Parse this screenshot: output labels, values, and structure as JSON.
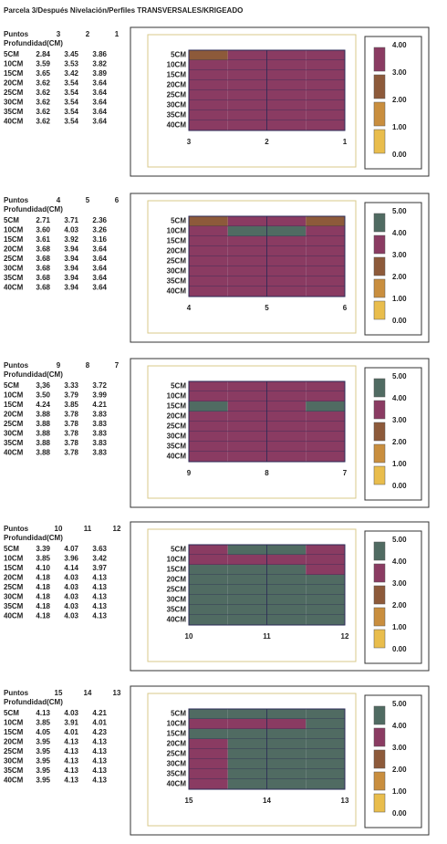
{
  "title": "Parcela 3/Después Nivelación/Perfiles TRANSVERSALES/KRIGEADO",
  "colors": [
    "#e9bd4c",
    "#c98e3e",
    "#8d5a3a",
    "#8a3b62",
    "#506b62"
  ],
  "sections": [
    {
      "points_header": "Puntos",
      "depth_header": "Profundidad(CM)",
      "points": [
        "3",
        "2",
        "1"
      ],
      "legend": [
        "4.00",
        "3.00",
        "2.00",
        "1.00",
        "0.00"
      ],
      "rows": [
        {
          "depth": "5CM",
          "values": [
            "2.84",
            "3.45",
            "3.86"
          ]
        },
        {
          "depth": "10CM",
          "values": [
            "3.59",
            "3.53",
            "3.82"
          ]
        },
        {
          "depth": "15CM",
          "values": [
            "3.65",
            "3.42",
            "3.89"
          ]
        },
        {
          "depth": "20CM",
          "values": [
            "3.62",
            "3.54",
            "3.64"
          ]
        },
        {
          "depth": "25CM",
          "values": [
            "3.62",
            "3.54",
            "3.64"
          ]
        },
        {
          "depth": "30CM",
          "values": [
            "3.62",
            "3.54",
            "3.64"
          ]
        },
        {
          "depth": "35CM",
          "values": [
            "3.62",
            "3.54",
            "3.64"
          ]
        },
        {
          "depth": "40CM",
          "values": [
            "3.62",
            "3.54",
            "3.64"
          ]
        }
      ]
    },
    {
      "points_header": "Puntos",
      "depth_header": "Profundidad(CM)",
      "points": [
        "4",
        "5",
        "6"
      ],
      "legend": [
        "5.00",
        "4.00",
        "3.00",
        "2.00",
        "1.00",
        "0.00"
      ],
      "rows": [
        {
          "depth": "5CM",
          "values": [
            "2.71",
            "3.71",
            "2.36"
          ]
        },
        {
          "depth": "10CM",
          "values": [
            "3.60",
            "4.03",
            "3.26"
          ]
        },
        {
          "depth": "15CM",
          "values": [
            "3.61",
            "3.92",
            "3.16"
          ]
        },
        {
          "depth": "20CM",
          "values": [
            "3.68",
            "3.94",
            "3.64"
          ]
        },
        {
          "depth": "25CM",
          "values": [
            "3.68",
            "3.94",
            "3.64"
          ]
        },
        {
          "depth": "30CM",
          "values": [
            "3.68",
            "3.94",
            "3.64"
          ]
        },
        {
          "depth": "35CM",
          "values": [
            "3.68",
            "3.94",
            "3.64"
          ]
        },
        {
          "depth": "40CM",
          "values": [
            "3.68",
            "3.94",
            "3.64"
          ]
        }
      ]
    },
    {
      "points_header": "Puntos",
      "depth_header": "Profundidad(CM)",
      "points": [
        "9",
        "8",
        "7"
      ],
      "legend": [
        "5.00",
        "4.00",
        "3.00",
        "2.00",
        "1.00",
        "0.00"
      ],
      "rows": [
        {
          "depth": "5CM",
          "values": [
            "3,36",
            "3.33",
            "3.72"
          ]
        },
        {
          "depth": "10CM",
          "values": [
            "3.50",
            "3.79",
            "3.99"
          ]
        },
        {
          "depth": "15CM",
          "values": [
            "4.24",
            "3.85",
            "4.21"
          ]
        },
        {
          "depth": "20CM",
          "values": [
            "3.88",
            "3.78",
            "3.83"
          ]
        },
        {
          "depth": "25CM",
          "values": [
            "3.88",
            "3.78",
            "3.83"
          ]
        },
        {
          "depth": "30CM",
          "values": [
            "3.88",
            "3.78",
            "3.83"
          ]
        },
        {
          "depth": "35CM",
          "values": [
            "3.88",
            "3.78",
            "3.83"
          ]
        },
        {
          "depth": "40CM",
          "values": [
            "3.88",
            "3.78",
            "3.83"
          ]
        }
      ]
    },
    {
      "points_header": "Puntos",
      "depth_header": "Profundidad(CM)",
      "points": [
        "10",
        "11",
        "12"
      ],
      "legend": [
        "5.00",
        "4.00",
        "3.00",
        "2.00",
        "1.00",
        "0.00"
      ],
      "rows": [
        {
          "depth": "5CM",
          "values": [
            "3.39",
            "4.07",
            "3.63"
          ]
        },
        {
          "depth": "10CM",
          "values": [
            "3.85",
            "3.96",
            "3.42"
          ]
        },
        {
          "depth": "15CM",
          "values": [
            "4.10",
            "4.14",
            "3.97"
          ]
        },
        {
          "depth": "20CM",
          "values": [
            "4.18",
            "4.03",
            "4.13"
          ]
        },
        {
          "depth": "25CM",
          "values": [
            "4.18",
            "4.03",
            "4.13"
          ]
        },
        {
          "depth": "30CM",
          "values": [
            "4.18",
            "4.03",
            "4.13"
          ]
        },
        {
          "depth": "35CM",
          "values": [
            "4.18",
            "4.03",
            "4.13"
          ]
        },
        {
          "depth": "40CM",
          "values": [
            "4.18",
            "4.03",
            "4.13"
          ]
        }
      ]
    },
    {
      "points_header": "Puntos",
      "depth_header": "Profundidad(CM)",
      "points": [
        "15",
        "14",
        "13"
      ],
      "legend": [
        "5.00",
        "4.00",
        "3.00",
        "2.00",
        "1.00",
        "0.00"
      ],
      "rows": [
        {
          "depth": "5CM",
          "values": [
            "4.13",
            "4.03",
            "4.21"
          ]
        },
        {
          "depth": "10CM",
          "values": [
            "3.85",
            "3.91",
            "4.01"
          ]
        },
        {
          "depth": "15CM",
          "values": [
            "4.05",
            "4.01",
            "4.23"
          ]
        },
        {
          "depth": "20CM",
          "values": [
            "3.95",
            "4.13",
            "4.13"
          ]
        },
        {
          "depth": "25CM",
          "values": [
            "3.95",
            "4.13",
            "4.13"
          ]
        },
        {
          "depth": "30CM",
          "values": [
            "3.95",
            "4.13",
            "4.13"
          ]
        },
        {
          "depth": "35CM",
          "values": [
            "3.95",
            "4.13",
            "4.13"
          ]
        },
        {
          "depth": "40CM",
          "values": [
            "3.95",
            "4.13",
            "4.13"
          ]
        }
      ]
    }
  ]
}
